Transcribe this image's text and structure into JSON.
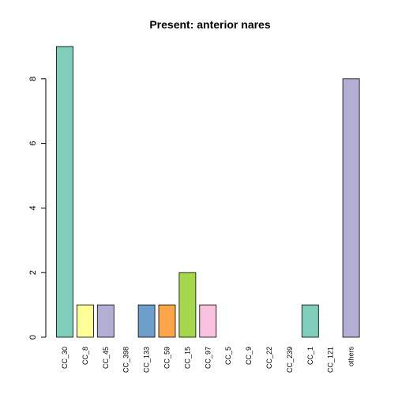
{
  "chart_data": {
    "type": "bar",
    "title": "Present:  anterior nares",
    "xlabel": "",
    "ylabel": "",
    "categories": [
      "CC_30",
      "CC_8",
      "CC_45",
      "CC_398",
      "CC_133",
      "CC_59",
      "CC_15",
      "CC_97",
      "CC_5",
      "CC_9",
      "CC_22",
      "CC_239",
      "CC_1",
      "CC_121",
      "others"
    ],
    "values": [
      9,
      1,
      1,
      0,
      1,
      1,
      2,
      1,
      0,
      0,
      0,
      0,
      1,
      0,
      8
    ],
    "colors": [
      "#7fcdbb",
      "#ffff99",
      "#b3aed3",
      "#7fcdbb",
      "#6e9fca",
      "#fca54a",
      "#a5d64b",
      "#f9c1e0",
      "#7fcdbb",
      "#7fcdbb",
      "#7fcdbb",
      "#7fcdbb",
      "#7fcdbb",
      "#7fcdbb",
      "#b3aed3"
    ],
    "ylim": [
      0,
      9
    ],
    "yticks": [
      0,
      2,
      4,
      6,
      8
    ],
    "ytick_labels": [
      "0",
      "2",
      "4",
      "6",
      "8"
    ],
    "grid": false,
    "legend": "none"
  }
}
